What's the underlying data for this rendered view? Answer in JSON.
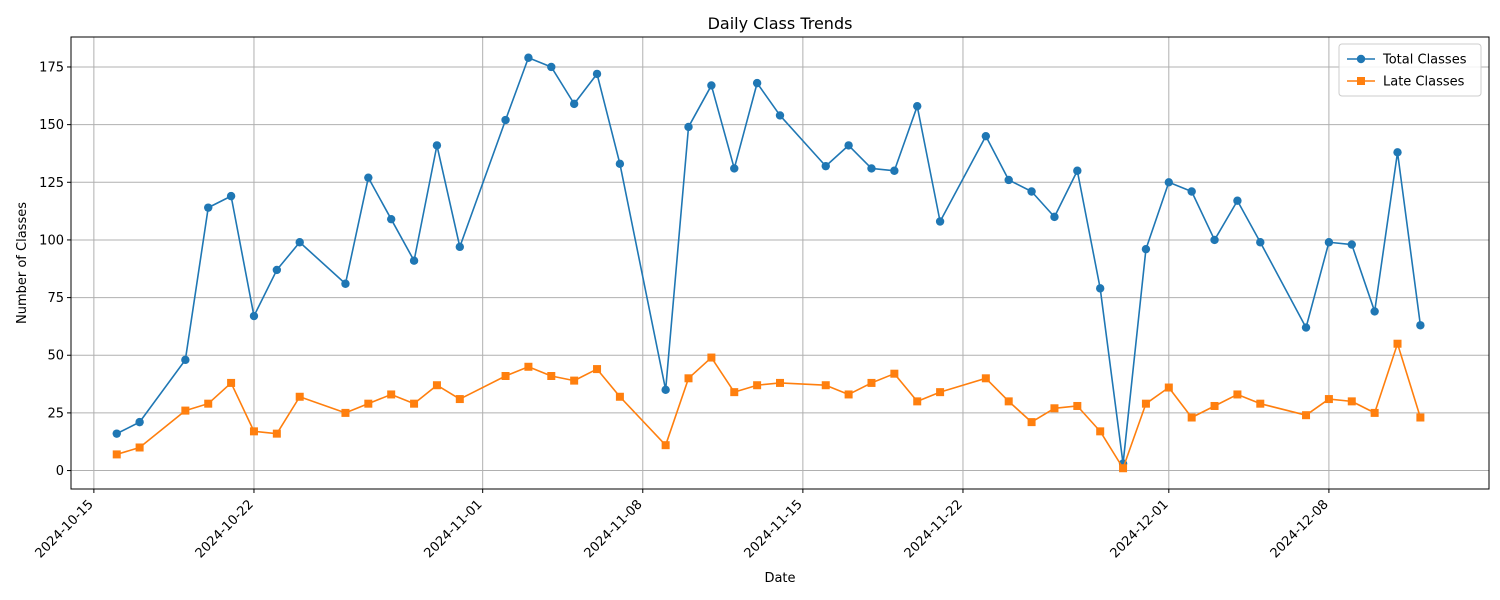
{
  "chart_data": {
    "type": "line",
    "title": "Daily Class Trends",
    "xlabel": "Date",
    "ylabel": "Number of Classes",
    "grid": true,
    "legend_position": "top-right",
    "x_tick_rotation_deg": 45,
    "xlim": [
      "2024-10-14",
      "2024-12-15"
    ],
    "ylim": [
      -8,
      188
    ],
    "x_ticks": [
      "2024-10-15",
      "2024-10-22",
      "2024-11-01",
      "2024-11-08",
      "2024-11-15",
      "2024-11-22",
      "2024-12-01",
      "2024-12-08"
    ],
    "y_ticks": [
      0,
      25,
      50,
      75,
      100,
      125,
      150,
      175
    ],
    "x": [
      "2024-10-16",
      "2024-10-17",
      "2024-10-19",
      "2024-10-20",
      "2024-10-21",
      "2024-10-22",
      "2024-10-23",
      "2024-10-24",
      "2024-10-26",
      "2024-10-27",
      "2024-10-28",
      "2024-10-29",
      "2024-10-30",
      "2024-10-31",
      "2024-11-02",
      "2024-11-03",
      "2024-11-04",
      "2024-11-05",
      "2024-11-06",
      "2024-11-07",
      "2024-11-09",
      "2024-11-10",
      "2024-11-11",
      "2024-11-12",
      "2024-11-13",
      "2024-11-14",
      "2024-11-16",
      "2024-11-17",
      "2024-11-18",
      "2024-11-19",
      "2024-11-20",
      "2024-11-21",
      "2024-11-23",
      "2024-11-24",
      "2024-11-25",
      "2024-11-26",
      "2024-11-27",
      "2024-11-28",
      "2024-11-29",
      "2024-11-30",
      "2024-12-01",
      "2024-12-02",
      "2024-12-03",
      "2024-12-04",
      "2024-12-05",
      "2024-12-07",
      "2024-12-08",
      "2024-12-09",
      "2024-12-10",
      "2024-12-11",
      "2024-12-12"
    ],
    "series": [
      {
        "name": "Total Classes",
        "color": "#1f77b4",
        "marker": "circle",
        "values": [
          16,
          21,
          48,
          114,
          119,
          67,
          87,
          99,
          81,
          127,
          109,
          91,
          141,
          97,
          152,
          179,
          175,
          159,
          172,
          133,
          35,
          149,
          167,
          131,
          168,
          154,
          132,
          141,
          131,
          130,
          158,
          108,
          145,
          126,
          121,
          110,
          130,
          79,
          3,
          96,
          125,
          121,
          100,
          117,
          99,
          62,
          99,
          98,
          69,
          138,
          63
        ]
      },
      {
        "name": "Late Classes",
        "color": "#ff7f0e",
        "marker": "square",
        "values": [
          7,
          10,
          26,
          29,
          38,
          17,
          16,
          32,
          25,
          29,
          33,
          29,
          37,
          31,
          41,
          45,
          41,
          39,
          44,
          32,
          11,
          40,
          49,
          34,
          37,
          38,
          37,
          33,
          38,
          42,
          30,
          34,
          40,
          30,
          21,
          27,
          28,
          17,
          1,
          29,
          36,
          23,
          28,
          33,
          29,
          24,
          31,
          30,
          25,
          55,
          23
        ]
      }
    ]
  }
}
